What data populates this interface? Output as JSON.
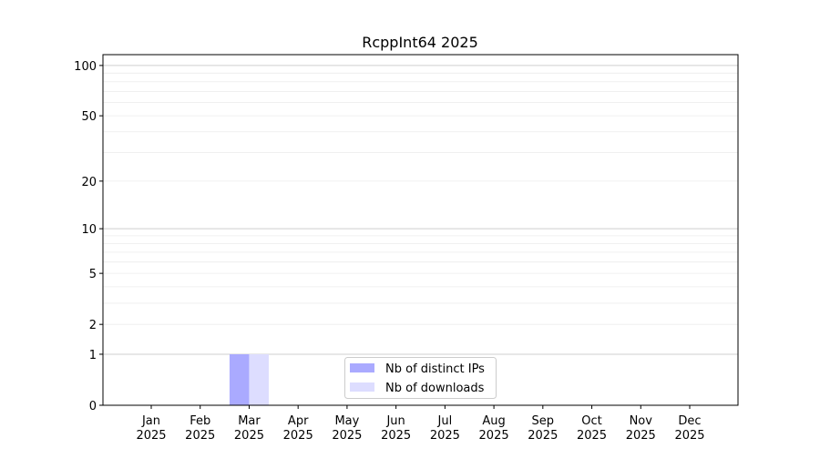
{
  "chart_data": {
    "type": "bar",
    "title": "RcppInt64 2025",
    "xlabel": "",
    "ylabel": "",
    "yscale": "log(1+y)",
    "ylim": [
      0,
      116
    ],
    "yticks": [
      0,
      1,
      2,
      5,
      10,
      20,
      50,
      100
    ],
    "grid": true,
    "legend_position": "lower-center",
    "categories": [
      "Jan\n2025",
      "Feb\n2025",
      "Mar\n2025",
      "Apr\n2025",
      "May\n2025",
      "Jun\n2025",
      "Jul\n2025",
      "Aug\n2025",
      "Sep\n2025",
      "Oct\n2025",
      "Nov\n2025",
      "Dec\n2025"
    ],
    "series": [
      {
        "name": "Nb of distinct IPs",
        "color": "#aaaaff",
        "values": [
          0,
          0,
          1,
          0,
          0,
          0,
          0,
          0,
          0,
          0,
          0,
          0
        ]
      },
      {
        "name": "Nb of downloads",
        "color": "#ddddff",
        "values": [
          0,
          0,
          1,
          0,
          0,
          0,
          0,
          0,
          0,
          0,
          0,
          0
        ]
      }
    ]
  }
}
